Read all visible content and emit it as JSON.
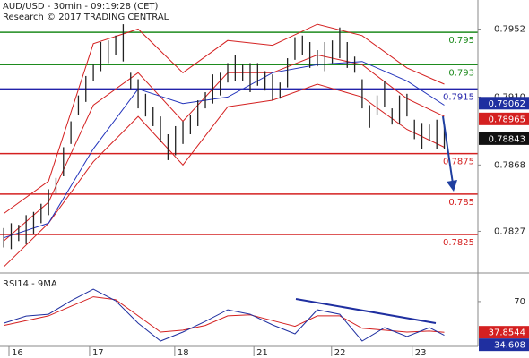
{
  "chart_data": [
    {
      "type": "hl",
      "title": "AUD/USD - 30min - 09:19:28 (CET)",
      "subtitle": "Research © 2017 TRADING CENTRAL",
      "color": "#222222",
      "x": [
        0,
        1,
        2,
        3,
        4,
        5,
        6,
        7,
        8,
        9,
        10,
        11,
        12,
        13,
        14,
        15,
        16,
        17,
        18,
        19,
        20,
        21,
        22,
        23,
        24,
        25,
        26,
        27,
        28,
        29,
        30,
        31,
        32,
        33,
        34,
        35,
        36,
        37,
        38,
        39,
        40,
        41,
        42,
        43,
        44,
        45,
        46,
        47,
        48,
        49,
        50,
        51,
        52,
        53,
        54,
        55,
        56,
        57,
        58,
        59
      ],
      "high": [
        0.7829,
        0.7832,
        0.7831,
        0.7837,
        0.7839,
        0.7844,
        0.7853,
        0.786,
        0.7879,
        0.7895,
        0.7911,
        0.7923,
        0.793,
        0.7944,
        0.7945,
        0.7948,
        0.7955,
        0.7925,
        0.7921,
        0.7912,
        0.7904,
        0.7898,
        0.7887,
        0.7892,
        0.7895,
        0.7899,
        0.7908,
        0.7913,
        0.7924,
        0.7925,
        0.7931,
        0.7936,
        0.793,
        0.7931,
        0.7931,
        0.7926,
        0.7924,
        0.7919,
        0.7934,
        0.7947,
        0.7948,
        0.7944,
        0.7939,
        0.7944,
        0.7945,
        0.7953,
        0.7944,
        0.7935,
        0.7921,
        0.7905,
        0.7911,
        0.792,
        0.7903,
        0.7911,
        0.7912,
        0.7896,
        0.7894,
        0.7893,
        0.7896,
        0.7892
      ],
      "low": [
        0.7817,
        0.7816,
        0.7821,
        0.7819,
        0.7825,
        0.7832,
        0.7837,
        0.785,
        0.7861,
        0.7881,
        0.7899,
        0.7907,
        0.792,
        0.7926,
        0.7931,
        0.7936,
        0.7932,
        0.7915,
        0.7903,
        0.7898,
        0.7892,
        0.7882,
        0.7871,
        0.7874,
        0.7881,
        0.7887,
        0.7892,
        0.7903,
        0.7906,
        0.7911,
        0.7919,
        0.792,
        0.792,
        0.7913,
        0.7917,
        0.7914,
        0.7908,
        0.7909,
        0.7916,
        0.7933,
        0.7936,
        0.7928,
        0.7929,
        0.7926,
        0.7931,
        0.7934,
        0.7928,
        0.7925,
        0.7903,
        0.7891,
        0.7899,
        0.7904,
        0.7893,
        0.7893,
        0.7898,
        0.7884,
        0.7878,
        0.7883,
        0.7878,
        0.7878
      ],
      "overlays": [
        {
          "color": "#d42020",
          "x": [
            0,
            6,
            12,
            18,
            24,
            30,
            36,
            42,
            48,
            54,
            59
          ],
          "values": [
            0.7838,
            0.7858,
            0.7943,
            0.7952,
            0.7925,
            0.7945,
            0.7942,
            0.7955,
            0.7948,
            0.7928,
            0.7918
          ]
        },
        {
          "color": "#d42020",
          "x": [
            0,
            6,
            12,
            18,
            24,
            30,
            36,
            42,
            48,
            54,
            59
          ],
          "values": [
            0.7805,
            0.7832,
            0.787,
            0.7898,
            0.7868,
            0.7904,
            0.7908,
            0.7918,
            0.791,
            0.789,
            0.7879
          ]
        },
        {
          "color": "#d42020",
          "x": [
            0,
            6,
            12,
            18,
            24,
            30,
            36,
            42,
            48,
            54,
            59
          ],
          "values": [
            0.7821,
            0.7845,
            0.7905,
            0.7925,
            0.7895,
            0.7925,
            0.7925,
            0.7936,
            0.793,
            0.7909,
            0.7898
          ]
        },
        {
          "color": "#2233bb",
          "x": [
            0,
            6,
            12,
            18,
            24,
            30,
            36,
            42,
            48,
            54,
            59
          ],
          "values": [
            0.7823,
            0.7832,
            0.7878,
            0.7915,
            0.7906,
            0.791,
            0.7925,
            0.793,
            0.7932,
            0.792,
            0.7905
          ]
        }
      ],
      "levels": [
        {
          "value": 0.795,
          "color": "#1e8b1e"
        },
        {
          "value": 0.793,
          "color": "#1e8b1e"
        },
        {
          "value": 0.7915,
          "color": "#2222aa"
        },
        {
          "value": 0.7875,
          "color": "#d42020"
        },
        {
          "value": 0.785,
          "color": "#d42020"
        },
        {
          "value": 0.7825,
          "color": "#d42020"
        }
      ],
      "markers": [
        {
          "value": 0.79062,
          "color": "#1f2fa0"
        },
        {
          "value": 0.78965,
          "color": "#d42020"
        },
        {
          "value": 0.78843,
          "color": "#111111"
        }
      ],
      "xlim": [
        -0.5,
        63.5
      ],
      "xticks": [
        {
          "value": 0.7,
          "label": "16"
        },
        {
          "value": 11.5,
          "label": "17"
        },
        {
          "value": 22.9,
          "label": "18"
        },
        {
          "value": 33.5,
          "label": "21"
        },
        {
          "value": 43.9,
          "label": "22"
        },
        {
          "value": 54.7,
          "label": "23"
        }
      ],
      "ylim": [
        0.7804,
        0.797
      ],
      "yticks": [
        0.7952,
        {
          "value": 0.791,
          "label": "0.7910"
        },
        0.7868,
        0.7827
      ]
    },
    {
      "type": "line",
      "title": "RSI14 - 9MA",
      "x": [
        0,
        3,
        6,
        9,
        12,
        15,
        18,
        21,
        24,
        27,
        30,
        33,
        36,
        39,
        42,
        45,
        48,
        51,
        54,
        57,
        59
      ],
      "series": [
        {
          "color": "#d42020",
          "values": [
            45,
            50,
            55,
            65,
            75,
            72,
            55,
            38,
            40,
            45,
            55,
            56,
            50,
            44,
            55,
            55,
            42,
            40,
            38,
            39,
            37.8544
          ]
        },
        {
          "color": "#1f2fa0",
          "values": [
            47.3,
            54.8,
            56.7,
            70.8,
            83,
            70.8,
            47.3,
            28.6,
            38,
            49.2,
            61.4,
            56.7,
            45.5,
            36.1,
            61.4,
            56.7,
            28.6,
            42.6,
            33.3,
            42.6,
            34.608
          ]
        }
      ],
      "xlim": [
        -0.5,
        63.5
      ],
      "ylim": [
        23,
        99
      ],
      "yticks": [
        70
      ]
    }
  ]
}
